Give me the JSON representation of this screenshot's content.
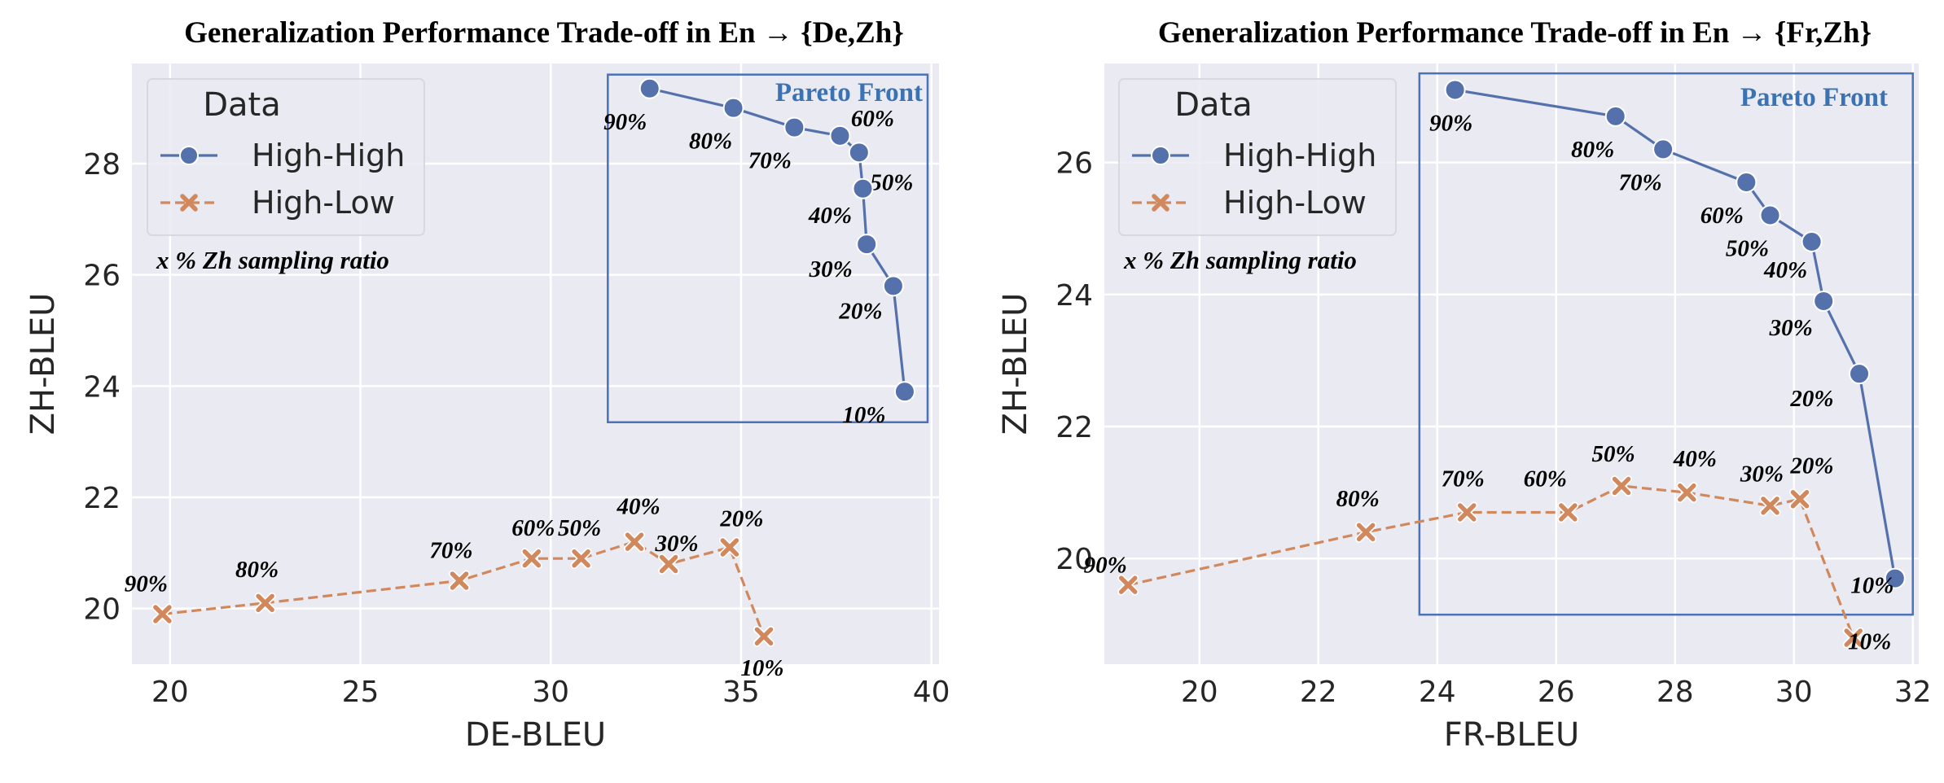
{
  "colors": {
    "plot_bg": "#eaeaf2",
    "grid": "#ffffff",
    "high_high": "#5471ab",
    "high_low": "#d1885c",
    "pareto_box": "#4a72b8",
    "pareto_text": "#3a72b4"
  },
  "chart_data": [
    {
      "type": "line",
      "title": "Generalization Performance Trade-off in En → {De,Zh}",
      "xlabel": "DE-BLEU",
      "ylabel": "ZH-BLEU",
      "xlim": [
        19,
        40.2
      ],
      "ylim": [
        19,
        29.8
      ],
      "xticks": [
        20,
        25,
        30,
        35,
        40
      ],
      "yticks": [
        20,
        22,
        24,
        26,
        28
      ],
      "grid": true,
      "legend": {
        "title": "Data",
        "placement": "top-left"
      },
      "note": "x %  Zh sampling ratio",
      "pareto": {
        "label": "Pareto Front",
        "x0": 31.5,
        "x1": 39.9,
        "y0": 23.35,
        "y1": 29.6
      },
      "series": [
        {
          "name": "High-High",
          "marker": "circle",
          "linestyle": "solid",
          "points": [
            {
              "x": 32.6,
              "y": 29.35,
              "label": "90%"
            },
            {
              "x": 34.8,
              "y": 29.0,
              "label": "80%"
            },
            {
              "x": 36.4,
              "y": 28.65,
              "label": "70%"
            },
            {
              "x": 37.6,
              "y": 28.5,
              "label": "60%"
            },
            {
              "x": 38.1,
              "y": 28.2,
              "label": "50%"
            },
            {
              "x": 38.2,
              "y": 27.55,
              "label": "40%"
            },
            {
              "x": 38.3,
              "y": 26.55,
              "label": "30%"
            },
            {
              "x": 39.0,
              "y": 25.8,
              "label": "20%"
            },
            {
              "x": 39.3,
              "y": 23.9,
              "label": "10%"
            }
          ]
        },
        {
          "name": "High-Low",
          "marker": "x",
          "linestyle": "dashed",
          "points": [
            {
              "x": 19.8,
              "y": 19.9,
              "label": "90%"
            },
            {
              "x": 22.5,
              "y": 20.1,
              "label": "80%"
            },
            {
              "x": 27.6,
              "y": 20.5,
              "label": "70%"
            },
            {
              "x": 29.5,
              "y": 20.9,
              "label": "60%"
            },
            {
              "x": 30.8,
              "y": 20.9,
              "label": "50%"
            },
            {
              "x": 32.2,
              "y": 21.2,
              "label": "40%"
            },
            {
              "x": 33.1,
              "y": 20.8,
              "label": "30%"
            },
            {
              "x": 34.7,
              "y": 21.1,
              "label": "20%"
            },
            {
              "x": 35.6,
              "y": 19.5,
              "label": "10%"
            }
          ]
        }
      ]
    },
    {
      "type": "line",
      "title": "Generalization Performance Trade-off in En → {Fr,Zh}",
      "xlabel": "FR-BLEU",
      "ylabel": "ZH-BLEU",
      "xlim": [
        18.4,
        32.1
      ],
      "ylim": [
        18.4,
        27.5
      ],
      "xticks": [
        20,
        22,
        24,
        26,
        28,
        30,
        32
      ],
      "yticks": [
        20,
        22,
        24,
        26
      ],
      "grid": true,
      "legend": {
        "title": "Data",
        "placement": "top-left"
      },
      "note": "x %  Zh sampling ratio",
      "pareto": {
        "label": "Pareto Front",
        "x0": 23.7,
        "x1": 32.0,
        "y0": 19.15,
        "y1": 27.35
      },
      "series": [
        {
          "name": "High-High",
          "marker": "circle",
          "linestyle": "solid",
          "points": [
            {
              "x": 24.3,
              "y": 27.1,
              "label": "90%"
            },
            {
              "x": 27.0,
              "y": 26.7,
              "label": "80%"
            },
            {
              "x": 27.8,
              "y": 26.2,
              "label": "70%"
            },
            {
              "x": 29.2,
              "y": 25.7,
              "label": "60%"
            },
            {
              "x": 29.6,
              "y": 25.2,
              "label": "50%"
            },
            {
              "x": 30.3,
              "y": 24.8,
              "label": "40%"
            },
            {
              "x": 30.5,
              "y": 23.9,
              "label": "30%"
            },
            {
              "x": 31.1,
              "y": 22.8,
              "label": "20%"
            },
            {
              "x": 31.7,
              "y": 19.7,
              "label": "10%"
            }
          ]
        },
        {
          "name": "High-Low",
          "marker": "x",
          "linestyle": "dashed",
          "points": [
            {
              "x": 18.8,
              "y": 19.6,
              "label": "90%"
            },
            {
              "x": 22.8,
              "y": 20.4,
              "label": "80%"
            },
            {
              "x": 24.5,
              "y": 20.7,
              "label": "70%"
            },
            {
              "x": 26.2,
              "y": 20.7,
              "label": "60%"
            },
            {
              "x": 27.1,
              "y": 21.1,
              "label": "50%"
            },
            {
              "x": 28.2,
              "y": 21.0,
              "label": "40%"
            },
            {
              "x": 29.6,
              "y": 20.8,
              "label": "30%"
            },
            {
              "x": 30.1,
              "y": 20.9,
              "label": "20%"
            },
            {
              "x": 31.0,
              "y": 18.8,
              "label": "10%"
            }
          ]
        }
      ]
    }
  ]
}
